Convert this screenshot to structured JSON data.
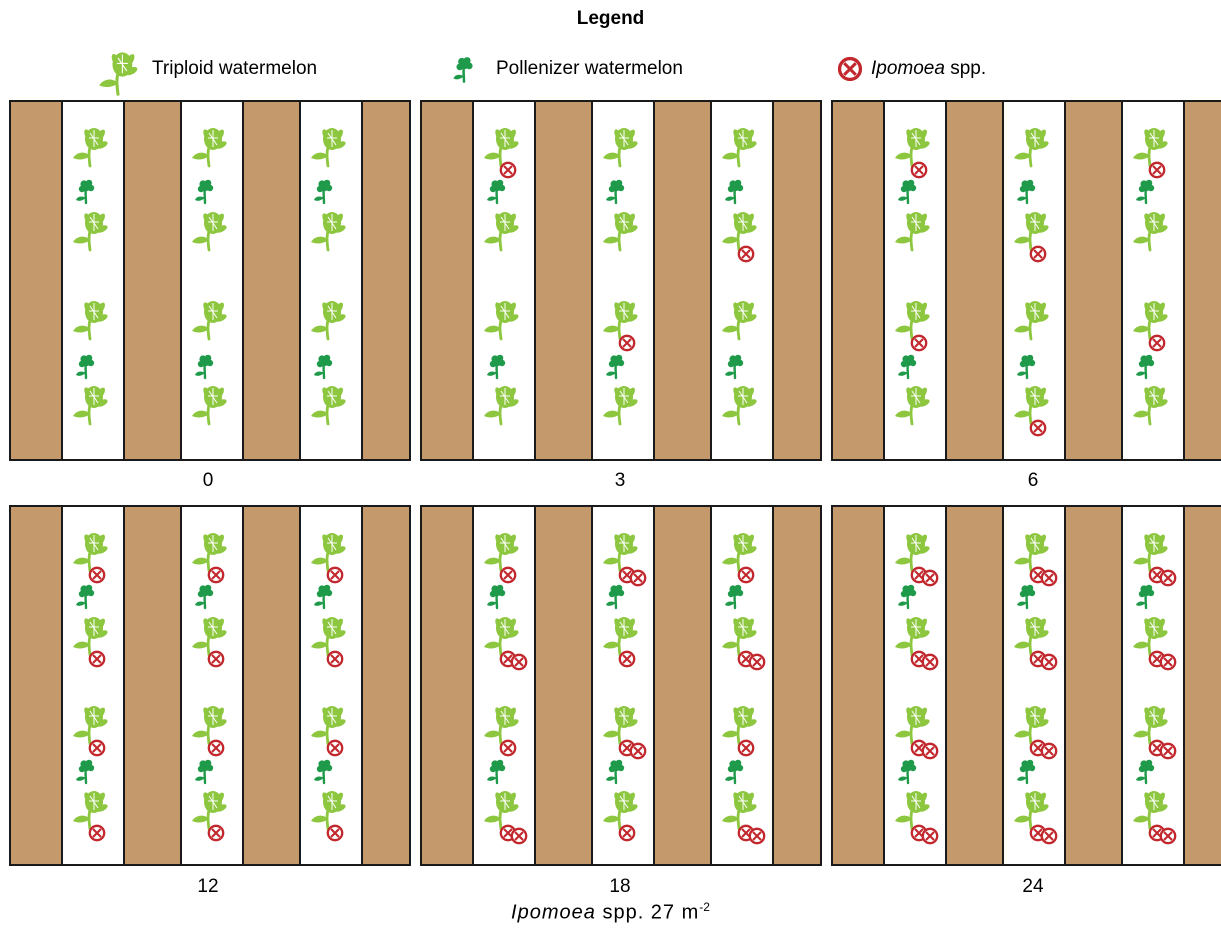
{
  "legend": {
    "title": "Legend",
    "items": [
      {
        "label": "Triploid watermelon",
        "icon": "triploid-watermelon-icon"
      },
      {
        "label": "Pollenizer watermelon",
        "icon": "pollenizer-watermelon-icon"
      },
      {
        "label_italic": "Ipomoea",
        "label_rest": " spp.",
        "icon": "ipomoea-marker-icon"
      }
    ]
  },
  "colors": {
    "soil": "#c49a6c",
    "bed": "#ffffff",
    "triploid": "#8dc63f",
    "pollenizer": "#1e9a4a",
    "ipomoea": "#c1272d",
    "border": "#1a1a1a"
  },
  "panels": [
    {
      "label": "0",
      "ipomoea": [
        [
          0,
          0,
          0,
          0
        ],
        [
          0,
          0,
          0,
          0
        ],
        [
          0,
          0,
          0,
          0
        ]
      ]
    },
    {
      "label": "3",
      "ipomoea": [
        [
          1,
          0,
          0,
          0
        ],
        [
          0,
          0,
          1,
          0
        ],
        [
          0,
          1,
          0,
          0
        ]
      ]
    },
    {
      "label": "6",
      "ipomoea": [
        [
          1,
          0,
          1,
          0
        ],
        [
          0,
          1,
          0,
          1
        ],
        [
          1,
          0,
          1,
          0
        ]
      ]
    },
    {
      "label": "12",
      "ipomoea": [
        [
          1,
          1,
          1,
          1
        ],
        [
          1,
          1,
          1,
          1
        ],
        [
          1,
          1,
          1,
          1
        ]
      ]
    },
    {
      "label": "18",
      "ipomoea": [
        [
          1,
          2,
          1,
          2
        ],
        [
          2,
          1,
          2,
          1
        ],
        [
          1,
          2,
          1,
          2
        ]
      ]
    },
    {
      "label": "24",
      "ipomoea": [
        [
          2,
          2,
          2,
          2
        ],
        [
          2,
          2,
          2,
          2
        ],
        [
          2,
          2,
          2,
          2
        ]
      ]
    }
  ],
  "footer": {
    "species": "Ipomoea",
    "text": " spp. 27 m",
    "superscript": "-2"
  }
}
